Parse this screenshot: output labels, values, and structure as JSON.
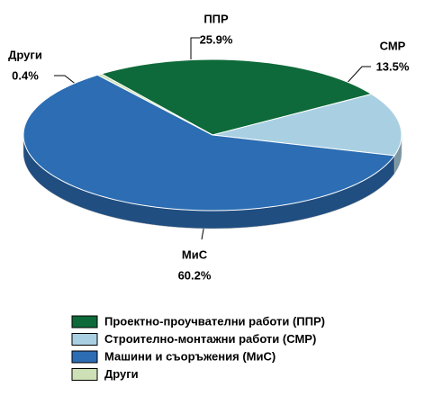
{
  "chart_data": {
    "type": "pie",
    "categories": [
      "ППР",
      "СМР",
      "МиС",
      "Други"
    ],
    "values": [
      25.9,
      13.5,
      60.2,
      0.4
    ],
    "value_labels": [
      "25.9%",
      "13.5%",
      "60.2%",
      "0.4%"
    ],
    "colors": [
      "#0e6a3a",
      "#a9d0e2",
      "#2c6db3",
      "#cde0b6"
    ],
    "legend": [
      "Проектно-проучвателни работи (ППР)",
      "Строително-монтажни работи (СМР)",
      "Машини и съоръжения (МиС)",
      "Други"
    ]
  }
}
